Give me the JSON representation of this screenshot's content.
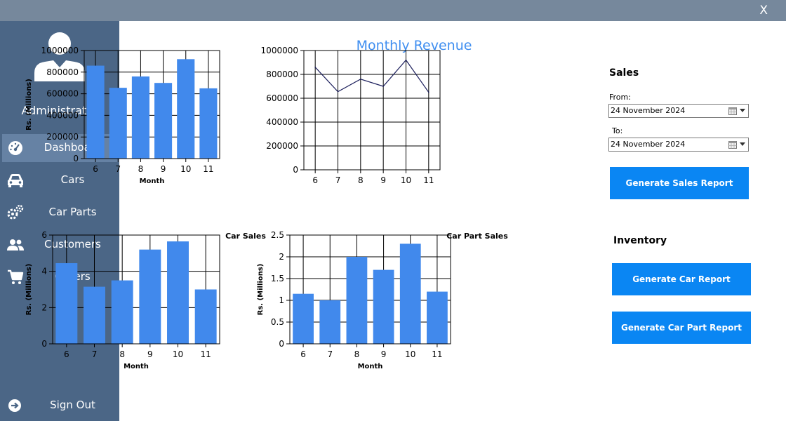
{
  "window": {
    "close_label": "X"
  },
  "sidebar": {
    "user_name": "Administrator",
    "items": [
      {
        "label": "Dashboard",
        "icon": "dashboard-icon",
        "active": true
      },
      {
        "label": "Cars",
        "icon": "car-icon",
        "active": false
      },
      {
        "label": "Car Parts",
        "icon": "gears-icon",
        "active": false
      },
      {
        "label": "Customers",
        "icon": "users-icon",
        "active": false
      },
      {
        "label": "Orders",
        "icon": "cart-icon",
        "active": false
      }
    ],
    "sign_out_label": "Sign Out"
  },
  "main": {
    "title": "Monthly Revenue"
  },
  "sales": {
    "section_title": "Sales",
    "from_label": "From:",
    "from_value": "24 November 2024",
    "to_label": "To:",
    "to_value": "24 November 2024",
    "report_button": "Generate Sales Report"
  },
  "inventory": {
    "section_title": "Inventory",
    "car_report_button": "Generate Car Report",
    "part_report_button": "Generate Car Part Report"
  },
  "colors": {
    "accent": "#3f8ef0",
    "bar": "#4189ec",
    "button": "#0a86f3",
    "sidebar": "#4b6686",
    "line": "#1c1f5c"
  },
  "chart_data": [
    {
      "type": "bar",
      "title": "",
      "xlabel": "Month",
      "ylabel": "Rs. (Millions)",
      "categories": [
        "6",
        "7",
        "8",
        "9",
        "10",
        "11"
      ],
      "values": [
        860000,
        655000,
        760000,
        700000,
        920000,
        650000
      ],
      "ylim": [
        0,
        1000000
      ],
      "yticks": [
        "0",
        "200000",
        "400000",
        "600000",
        "800000",
        "1000000"
      ],
      "grid": true
    },
    {
      "type": "line",
      "title": "",
      "xlabel": "",
      "ylabel": "",
      "categories": [
        "6",
        "7",
        "8",
        "9",
        "10",
        "11"
      ],
      "values": [
        860000,
        655000,
        760000,
        700000,
        920000,
        650000
      ],
      "ylim": [
        0,
        1000000
      ],
      "yticks": [
        "0",
        "200000",
        "400000",
        "600000",
        "800000",
        "1000000"
      ],
      "grid": true
    },
    {
      "type": "bar",
      "title": "Car Sales",
      "xlabel": "Month",
      "ylabel": "Rs. (Millions)",
      "categories": [
        "6",
        "7",
        "8",
        "9",
        "10",
        "11"
      ],
      "values": [
        4.45,
        3.15,
        3.5,
        5.2,
        5.65,
        3.0
      ],
      "ylim": [
        0,
        6
      ],
      "yticks": [
        "0",
        "2",
        "4",
        "6"
      ],
      "grid": true
    },
    {
      "type": "bar",
      "title": "Car Part Sales",
      "xlabel": "Month",
      "ylabel": "Rs. (Millions)",
      "categories": [
        "6",
        "7",
        "8",
        "9",
        "10",
        "11"
      ],
      "values": [
        1.15,
        1.0,
        2.0,
        1.7,
        2.3,
        1.2
      ],
      "ylim": [
        0,
        2.5
      ],
      "yticks": [
        "0",
        "0.5",
        "1",
        "1.5",
        "2",
        "2.5"
      ],
      "grid": true
    }
  ]
}
